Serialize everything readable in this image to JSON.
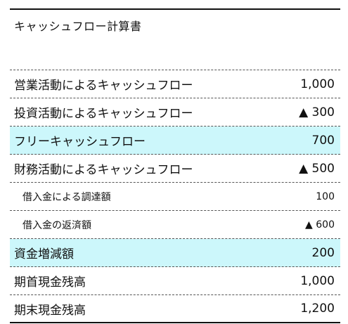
{
  "title": "キャッシュフロー計算書",
  "rows": [
    {
      "label": "営業活動によるキャッシュフロー",
      "value": "1,000"
    },
    {
      "label": "投資活動によるキャッシュフロー",
      "value": "▲ 300"
    },
    {
      "label": "フリーキャッシュフロー",
      "value": "700"
    },
    {
      "label": "財務活動によるキャッシュフロー",
      "value": "▲ 500"
    },
    {
      "label": "借入金による調達額",
      "value": "100"
    },
    {
      "label": "借入金の返済額",
      "value": "▲ 600"
    },
    {
      "label": "資金増減額",
      "value": "200"
    },
    {
      "label": "期首現金残高",
      "value": "1,000"
    },
    {
      "label": "期末現金残高",
      "value": "1,200"
    }
  ],
  "colors": {
    "highlight": "#ccf7fb",
    "rule": "#111111",
    "dashed_rule": "#555555"
  }
}
